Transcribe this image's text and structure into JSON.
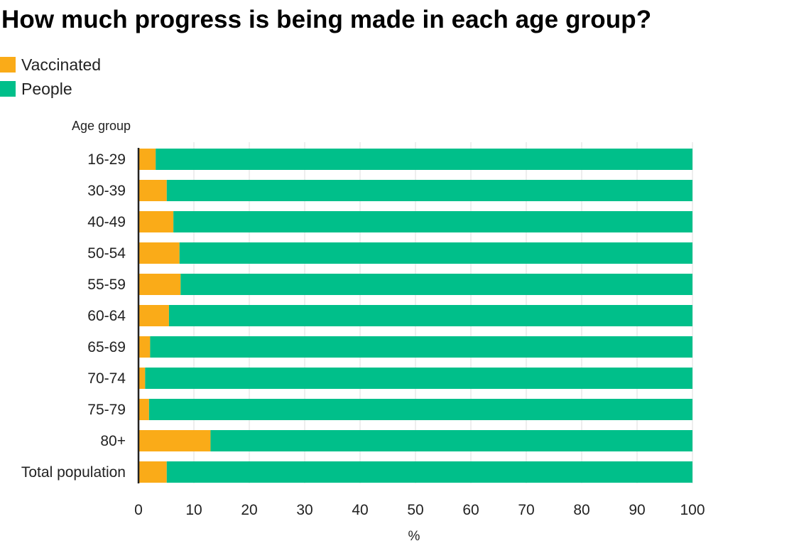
{
  "chart_data": {
    "type": "bar",
    "stacked": true,
    "orientation": "horizontal",
    "title": "How much progress is being made in each age group?",
    "ylabel": "Age group",
    "xlabel": "%",
    "xlim": [
      0,
      100
    ],
    "xticks": [
      "0",
      "10",
      "20",
      "30",
      "40",
      "50",
      "60",
      "70",
      "80",
      "90",
      "100"
    ],
    "grid": true,
    "legend_position": "top-left",
    "categories": [
      "16-29",
      "30-39",
      "40-49",
      "50-54",
      "55-59",
      "60-64",
      "65-69",
      "70-74",
      "75-79",
      "80+",
      "Total population"
    ],
    "series": [
      {
        "name": "Vaccinated",
        "color": "#FAAB18",
        "values": [
          3.1,
          5.1,
          6.3,
          7.4,
          7.6,
          5.5,
          2.1,
          1.2,
          1.9,
          13.0,
          5.1
        ]
      },
      {
        "name": "People",
        "color": "#00BF8A",
        "values": [
          96.9,
          94.9,
          93.7,
          92.6,
          92.4,
          94.5,
          97.9,
          98.8,
          98.1,
          87.0,
          94.9
        ]
      }
    ]
  }
}
